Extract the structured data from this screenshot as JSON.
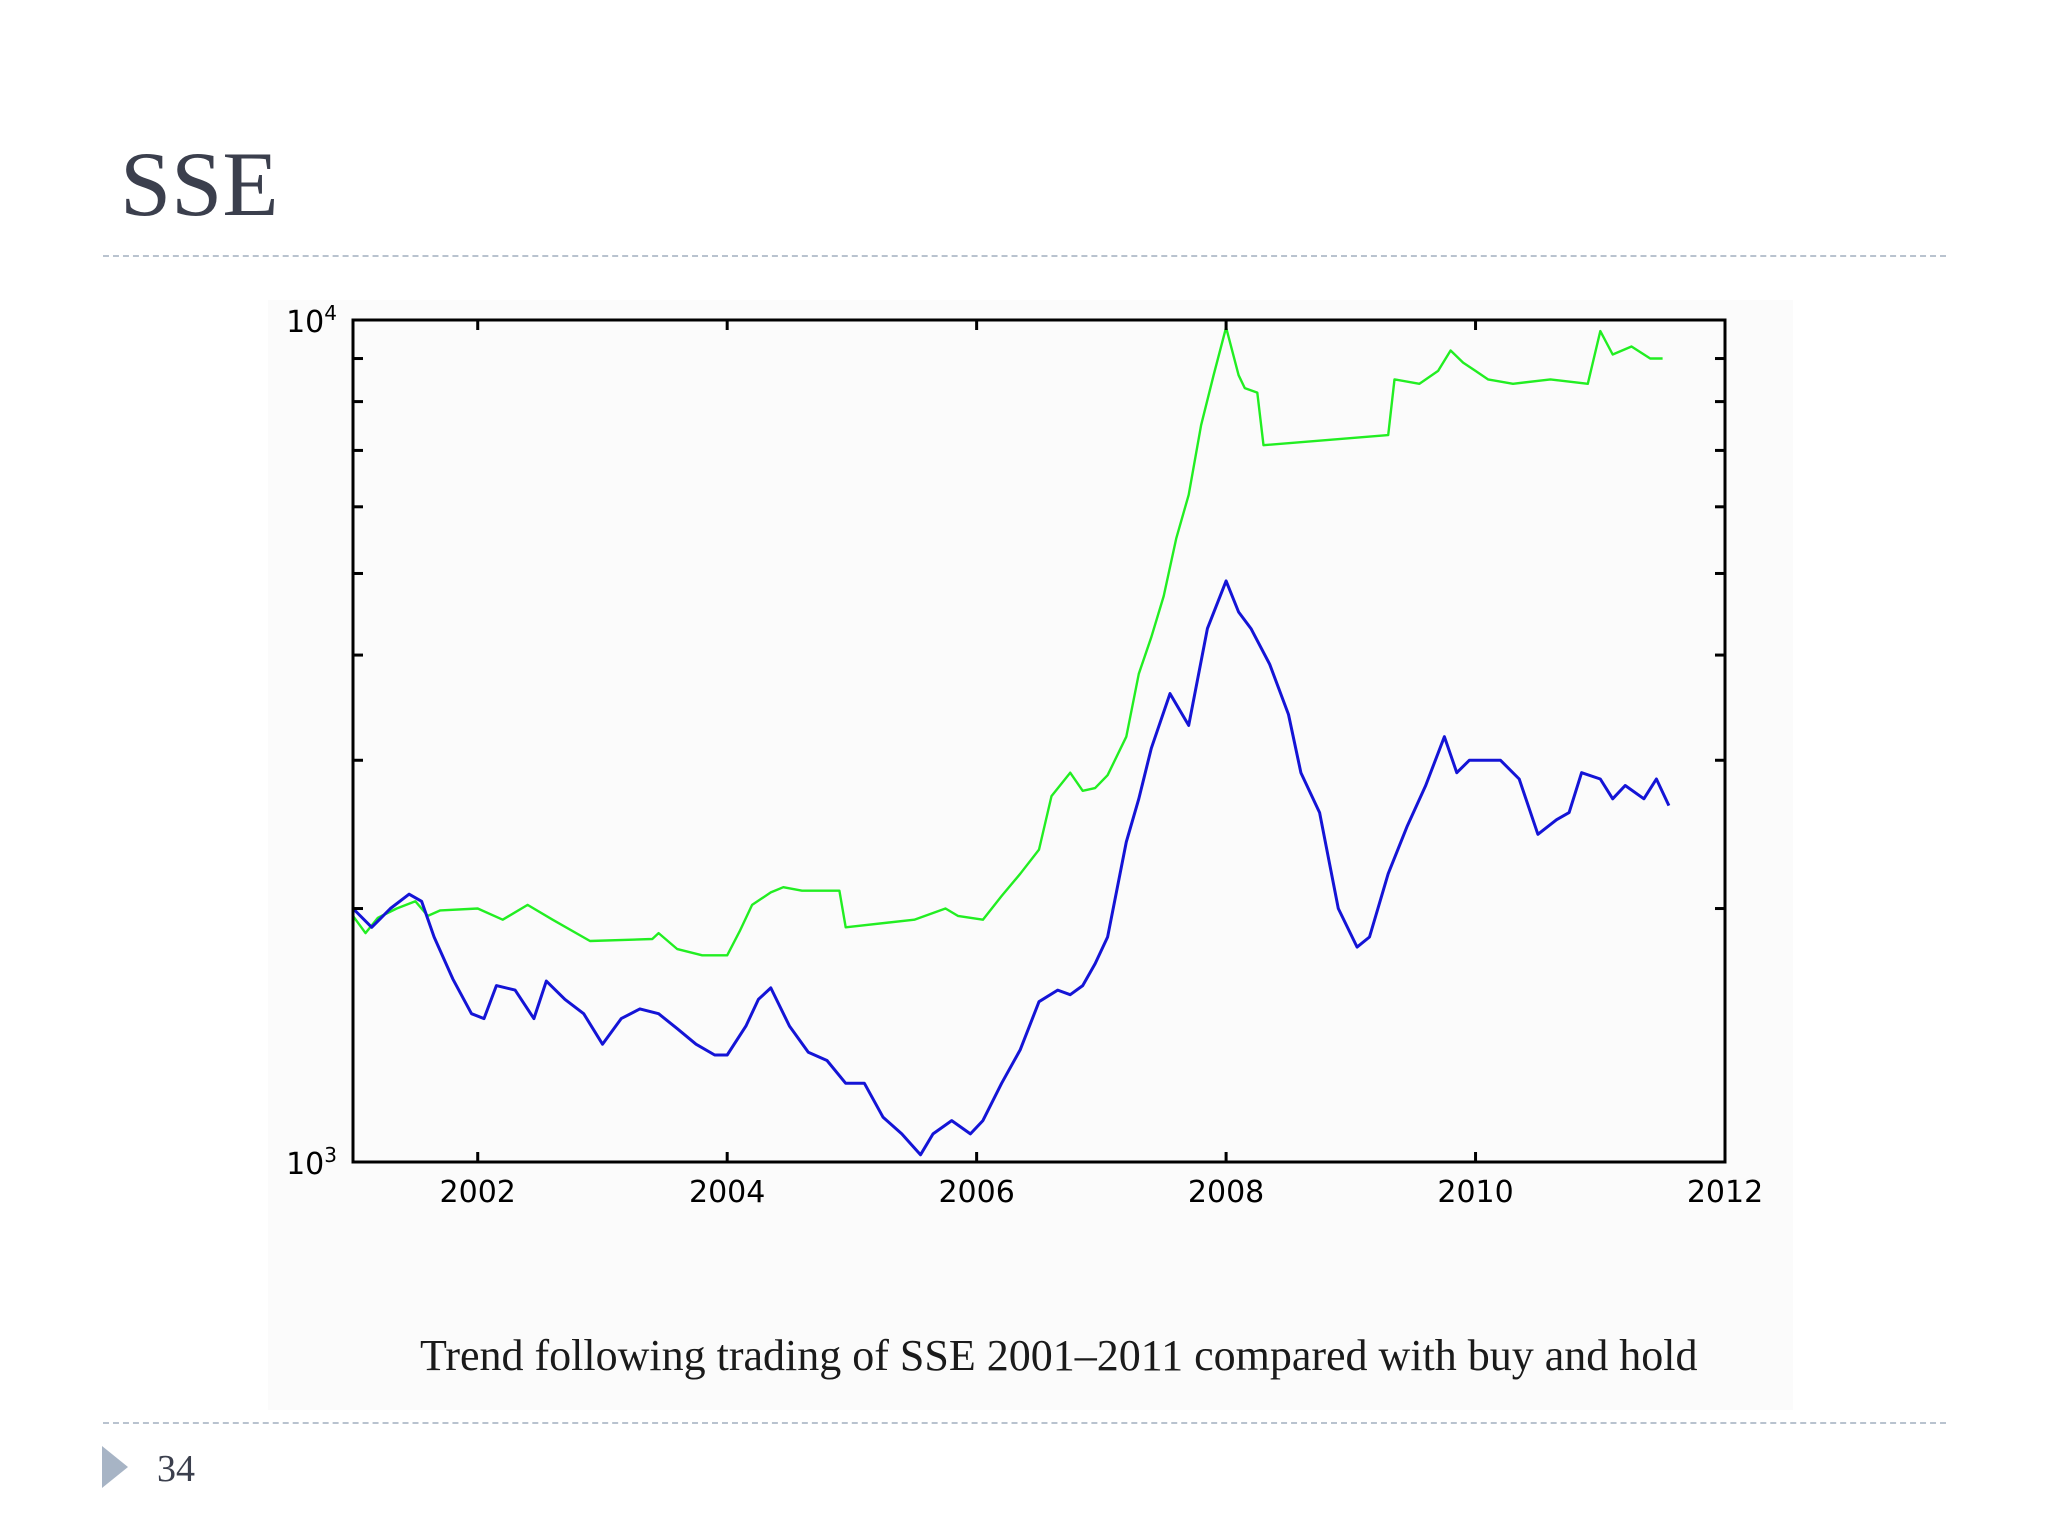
{
  "slide": {
    "title": "SSE",
    "page_number": "34",
    "caption": "Trend following trading of SSE 2001–2011 compared with buy and hold"
  },
  "colors": {
    "trend_following": "#22ee22",
    "buy_and_hold": "#1414d6",
    "axis": "#000000",
    "title": "#3b3f4d",
    "rule": "#b9c3cf",
    "arrow": "#a7b4c5"
  },
  "chart_data": {
    "type": "line",
    "title": "",
    "xlabel": "",
    "ylabel": "",
    "x_scale": "linear",
    "y_scale": "log",
    "xlim": [
      2001.0,
      2012.0
    ],
    "ylim": [
      1000,
      10000
    ],
    "x_ticks": [
      2002,
      2004,
      2006,
      2008,
      2010,
      2012
    ],
    "x_tick_labels": [
      "2002",
      "2004",
      "2006",
      "2008",
      "2010",
      "2012"
    ],
    "y_tick_labels": [
      {
        "value": 10000,
        "base": "10",
        "exp": "4"
      },
      {
        "value": 1000,
        "base": "10",
        "exp": "3"
      }
    ],
    "grid": false,
    "series": [
      {
        "name": "Trend following",
        "color": "#22ee22",
        "x": [
          2001.0,
          2001.1,
          2001.2,
          2001.35,
          2001.5,
          2001.6,
          2001.7,
          2002.0,
          2002.2,
          2002.4,
          2002.6,
          2002.9,
          2003.4,
          2003.45,
          2003.6,
          2003.8,
          2004.0,
          2004.1,
          2004.2,
          2004.35,
          2004.45,
          2004.6,
          2004.9,
          2004.95,
          2005.5,
          2005.75,
          2005.85,
          2006.05,
          2006.2,
          2006.35,
          2006.5,
          2006.6,
          2006.75,
          2006.85,
          2006.95,
          2007.05,
          2007.2,
          2007.3,
          2007.4,
          2007.5,
          2007.6,
          2007.7,
          2007.8,
          2007.9,
          2008.0,
          2008.1,
          2008.15,
          2008.25,
          2008.3,
          2009.3,
          2009.35,
          2009.55,
          2009.7,
          2009.8,
          2009.9,
          2010.0,
          2010.1,
          2010.3,
          2010.6,
          2010.9,
          2011.0,
          2011.1,
          2011.25,
          2011.4,
          2011.5
        ],
        "y": [
          1960,
          1870,
          1950,
          2000,
          2040,
          1960,
          1990,
          2000,
          1940,
          2020,
          1940,
          1830,
          1840,
          1870,
          1790,
          1760,
          1760,
          1880,
          2020,
          2090,
          2120,
          2100,
          2100,
          1900,
          1940,
          2000,
          1960,
          1940,
          2070,
          2200,
          2350,
          2720,
          2900,
          2760,
          2780,
          2880,
          3200,
          3800,
          4200,
          4700,
          5500,
          6200,
          7500,
          8600,
          9800,
          8600,
          8300,
          8200,
          7100,
          7300,
          8500,
          8400,
          8700,
          9200,
          8900,
          8700,
          8500,
          8400,
          8500,
          8400,
          9700,
          9100,
          9300,
          9000,
          9000
        ]
      },
      {
        "name": "Buy and hold",
        "color": "#1414d6",
        "x": [
          2001.0,
          2001.15,
          2001.3,
          2001.45,
          2001.55,
          2001.65,
          2001.8,
          2001.95,
          2002.05,
          2002.15,
          2002.3,
          2002.45,
          2002.55,
          2002.7,
          2002.85,
          2003.0,
          2003.15,
          2003.3,
          2003.45,
          2003.6,
          2003.75,
          2003.9,
          2004.0,
          2004.15,
          2004.25,
          2004.35,
          2004.5,
          2004.65,
          2004.8,
          2004.95,
          2005.1,
          2005.25,
          2005.4,
          2005.55,
          2005.65,
          2005.8,
          2005.95,
          2006.05,
          2006.2,
          2006.35,
          2006.5,
          2006.65,
          2006.75,
          2006.85,
          2006.95,
          2007.05,
          2007.2,
          2007.3,
          2007.4,
          2007.55,
          2007.7,
          2007.85,
          2008.0,
          2008.1,
          2008.2,
          2008.35,
          2008.5,
          2008.6,
          2008.75,
          2008.9,
          2009.05,
          2009.15,
          2009.3,
          2009.45,
          2009.6,
          2009.75,
          2009.85,
          2009.95,
          2010.05,
          2010.2,
          2010.35,
          2010.5,
          2010.65,
          2010.75,
          2010.85,
          2011.0,
          2011.1,
          2011.2,
          2011.35,
          2011.45,
          2011.55
        ],
        "y": [
          2000,
          1900,
          2000,
          2080,
          2040,
          1850,
          1650,
          1500,
          1480,
          1620,
          1600,
          1480,
          1640,
          1560,
          1500,
          1380,
          1480,
          1520,
          1500,
          1440,
          1380,
          1340,
          1340,
          1450,
          1560,
          1610,
          1450,
          1350,
          1320,
          1240,
          1240,
          1130,
          1080,
          1020,
          1080,
          1120,
          1080,
          1120,
          1240,
          1360,
          1550,
          1600,
          1580,
          1620,
          1720,
          1850,
          2400,
          2700,
          3100,
          3600,
          3300,
          4300,
          4900,
          4500,
          4300,
          3900,
          3400,
          2900,
          2600,
          2000,
          1800,
          1850,
          2200,
          2500,
          2800,
          3200,
          2900,
          3000,
          3000,
          3000,
          2850,
          2450,
          2550,
          2600,
          2900,
          2850,
          2700,
          2800,
          2700,
          2850,
          2650
        ]
      }
    ]
  }
}
